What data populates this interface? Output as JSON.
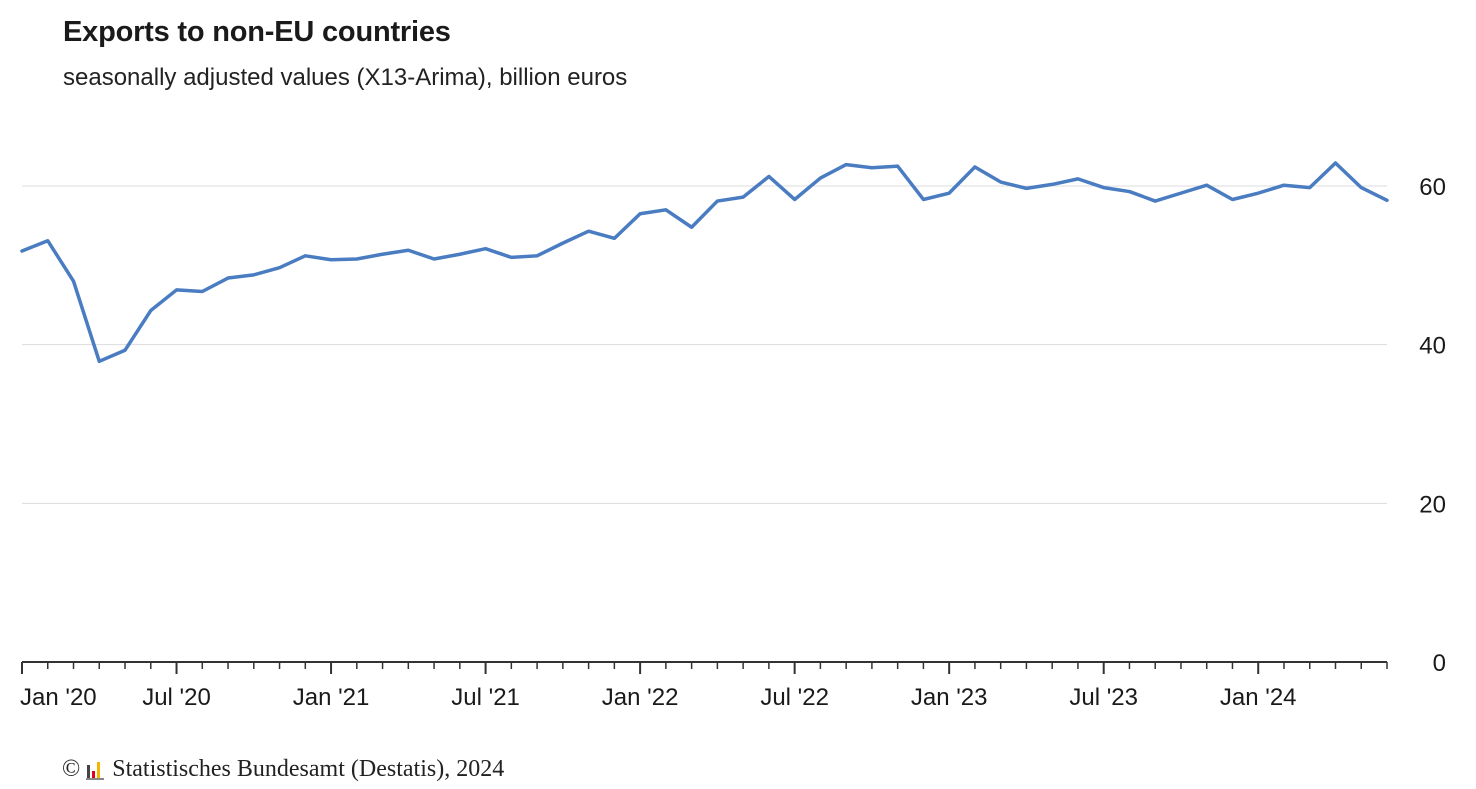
{
  "chart_data": {
    "type": "line",
    "title": "Exports to non-EU countries",
    "subtitle": "seasonally adjusted values (X13-Arima), billion euros",
    "x": [
      "2020-01",
      "2020-02",
      "2020-03",
      "2020-04",
      "2020-05",
      "2020-06",
      "2020-07",
      "2020-08",
      "2020-09",
      "2020-10",
      "2020-11",
      "2020-12",
      "2021-01",
      "2021-02",
      "2021-03",
      "2021-04",
      "2021-05",
      "2021-06",
      "2021-07",
      "2021-08",
      "2021-09",
      "2021-10",
      "2021-11",
      "2021-12",
      "2022-01",
      "2022-02",
      "2022-03",
      "2022-04",
      "2022-05",
      "2022-06",
      "2022-07",
      "2022-08",
      "2022-09",
      "2022-10",
      "2022-11",
      "2022-12",
      "2023-01",
      "2023-02",
      "2023-03",
      "2023-04",
      "2023-05",
      "2023-06",
      "2023-07",
      "2023-08",
      "2023-09",
      "2023-10",
      "2023-11",
      "2023-12",
      "2024-01",
      "2024-02",
      "2024-03",
      "2024-04",
      "2024-05",
      "2024-06"
    ],
    "series": [
      {
        "values": [
          51.8,
          53.1,
          48.0,
          37.9,
          39.3,
          44.3,
          46.9,
          46.7,
          48.4,
          48.8,
          49.7,
          51.2,
          50.7,
          50.8,
          51.4,
          51.9,
          50.8,
          51.4,
          52.1,
          51.0,
          51.2,
          52.8,
          54.3,
          53.4,
          56.5,
          57.0,
          54.8,
          58.1,
          58.6,
          61.2,
          58.3,
          61.0,
          62.7,
          62.3,
          62.5,
          58.3,
          59.1,
          62.4,
          60.5,
          59.7,
          60.2,
          60.9,
          59.8,
          59.3,
          58.1,
          59.1,
          60.1,
          58.3,
          59.1,
          60.1,
          59.8,
          62.9,
          59.8,
          58.2
        ],
        "color": "#4a7cc2"
      }
    ],
    "x_tick_labels": [
      "Jan '20",
      "Jul '20",
      "Jan '21",
      "Jul '21",
      "Jan '22",
      "Jul '22",
      "Jan '23",
      "Jul '23",
      "Jan '24"
    ],
    "x_tick_dates": [
      "2020-01",
      "2020-07",
      "2021-01",
      "2021-07",
      "2022-01",
      "2022-07",
      "2023-01",
      "2023-07",
      "2024-01"
    ],
    "y_ticks": [
      0,
      20,
      40,
      60
    ],
    "ylim": [
      0,
      60
    ],
    "xlabel": "",
    "ylabel": "",
    "grid": true,
    "y_axis_side": "right"
  },
  "footer": {
    "copyright_symbol": "©",
    "source": "Statistisches Bundesamt (Destatis), 2024"
  }
}
